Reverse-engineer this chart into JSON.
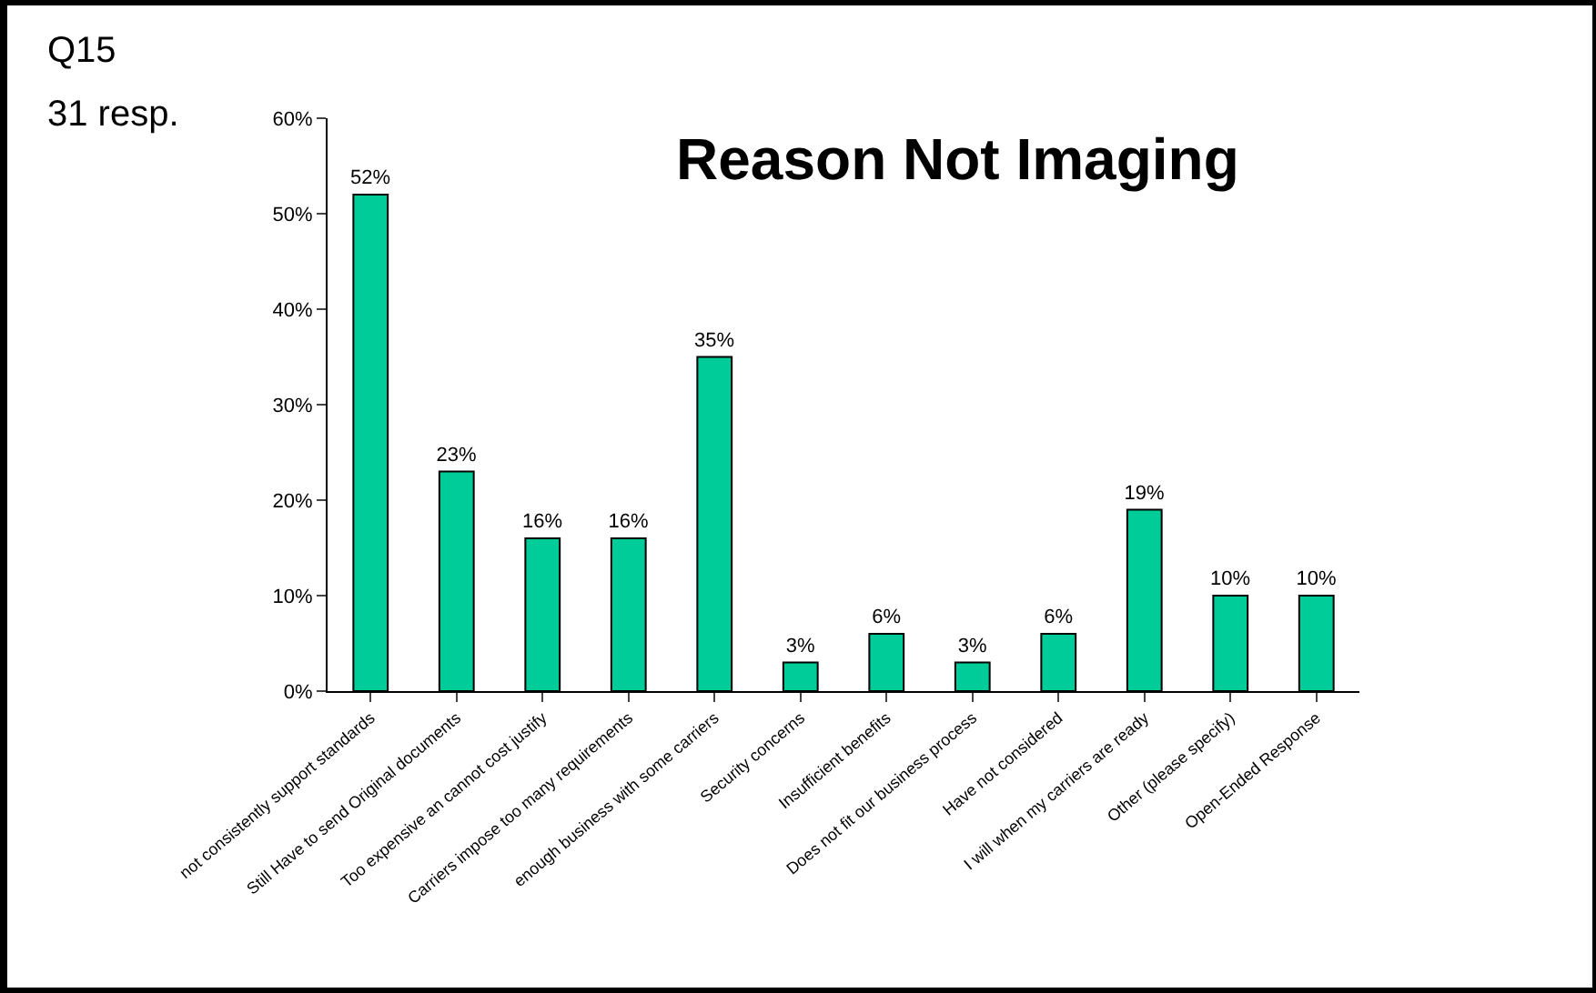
{
  "chart_data": {
    "type": "bar",
    "title": "Reason Not Imaging",
    "annotations": [
      "Q15",
      "31 resp."
    ],
    "categories": [
      "not consistently support standards",
      "Still Have to send Original documents",
      "Too expensive an cannot cost justify",
      "Carriers impose too many requirements",
      "enough business with some carriers",
      "Security concerns",
      "Insufficient benefits",
      "Does not fit our business process",
      "Have not considered",
      "I will when my carriers are ready",
      "Other (please specify)",
      "Open-Ended Response"
    ],
    "values": [
      52,
      23,
      16,
      16,
      35,
      3,
      6,
      3,
      6,
      19,
      10,
      10
    ],
    "value_labels": [
      "52%",
      "23%",
      "16%",
      "16%",
      "35%",
      "3%",
      "6%",
      "3%",
      "6%",
      "19%",
      "10%",
      "10%"
    ],
    "color": "#00cc99",
    "ylim": [
      0,
      60
    ],
    "yticks": [
      {
        "value": 0,
        "label": "0%"
      },
      {
        "value": 10,
        "label": "10%"
      },
      {
        "value": 20,
        "label": "20%"
      },
      {
        "value": 30,
        "label": "30%"
      },
      {
        "value": 40,
        "label": "40%"
      },
      {
        "value": 50,
        "label": "50%"
      },
      {
        "value": 60,
        "label": "60%"
      }
    ],
    "grid": false
  }
}
